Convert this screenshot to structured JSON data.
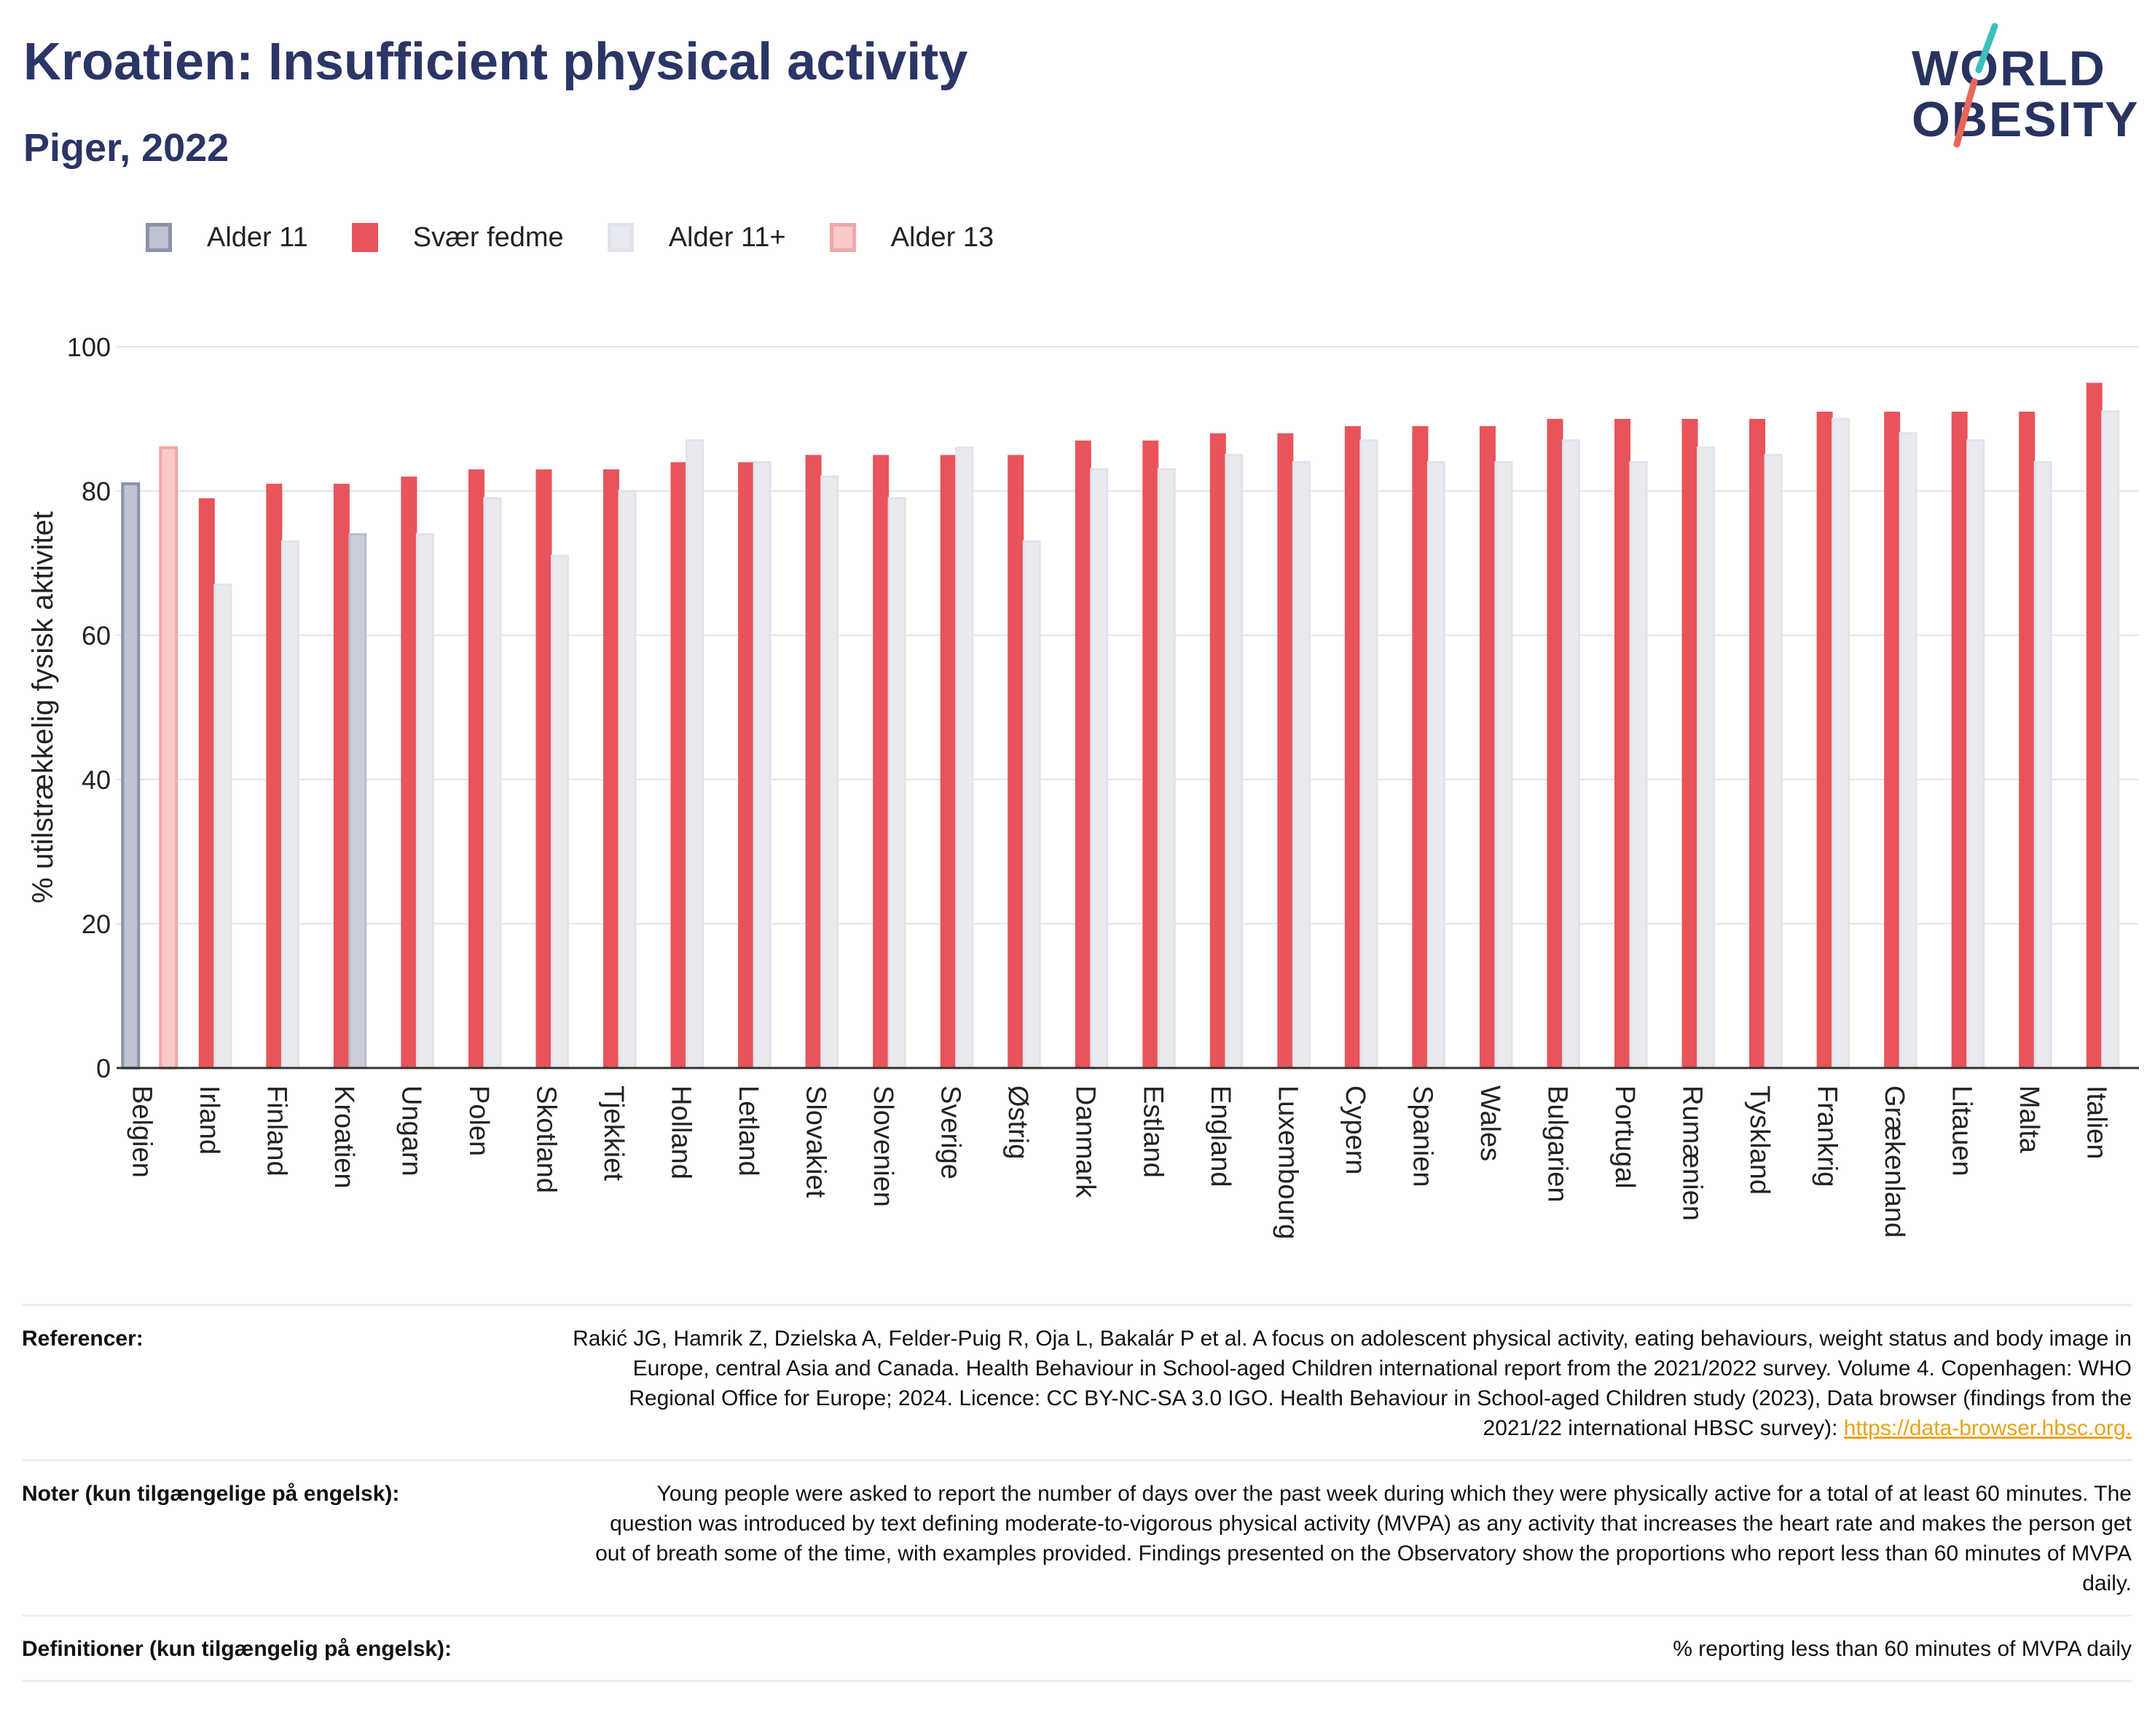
{
  "header": {
    "title": "Kroatien: Insufficient physical activity",
    "subtitle": "Piger, 2022",
    "logo_line1": "WORLD",
    "logo_line2": "OBESITY"
  },
  "legend": [
    {
      "label": "Alder 11",
      "color": "#bfc3d4",
      "border": "#8c92ab"
    },
    {
      "label": "Svær fedme",
      "color": "#e8545a",
      "border": "#e8545a"
    },
    {
      "label": "Alder 11+",
      "color": "#e9eaf0",
      "border": "#e1e3ea"
    },
    {
      "label": "Alder 13",
      "color": "#f8c9ca",
      "border": "#f3a6a8"
    }
  ],
  "chart_data": {
    "type": "bar",
    "ylabel": "% utilstrækkelig fysisk aktivitet",
    "ylim": [
      0,
      100
    ],
    "yticks": [
      0,
      20,
      40,
      60,
      80,
      100
    ],
    "categories": [
      "Belgien",
      "Irland",
      "Finland",
      "Kroatien",
      "Ungarn",
      "Polen",
      "Skotland",
      "Tjekkiet",
      "Holland",
      "Letland",
      "Slovakiet",
      "Slovenien",
      "Sverige",
      "Østrig",
      "Danmark",
      "Estland",
      "England",
      "Luxembourg",
      "Cypern",
      "Spanien",
      "Wales",
      "Bulgarien",
      "Portugal",
      "Rumænien",
      "Tyskland",
      "Frankrig",
      "Grækenland",
      "Litauen",
      "Malta",
      "Italien"
    ],
    "series": [
      {
        "name": "Alder 11",
        "color": "#bfc3d4",
        "values": [
          81,
          null,
          null,
          null,
          null,
          null,
          null,
          null,
          null,
          null,
          null,
          null,
          null,
          null,
          null,
          null,
          null,
          null,
          null,
          null,
          null,
          null,
          null,
          null,
          null,
          null,
          null,
          null,
          null,
          null
        ]
      },
      {
        "name": "Alder 13",
        "color": "#f8c9ca",
        "values": [
          86,
          null,
          null,
          null,
          null,
          null,
          null,
          null,
          null,
          null,
          null,
          null,
          null,
          null,
          null,
          null,
          null,
          null,
          null,
          null,
          null,
          null,
          null,
          null,
          null,
          null,
          null,
          null,
          null,
          null
        ]
      },
      {
        "name": "Svær fedme",
        "color": "#e8545a",
        "values": [
          null,
          79,
          81,
          81,
          82,
          83,
          83,
          83,
          84,
          84,
          85,
          85,
          85,
          85,
          87,
          87,
          88,
          88,
          89,
          89,
          89,
          90,
          90,
          90,
          90,
          91,
          91,
          91,
          91,
          95
        ]
      },
      {
        "name": "Alder 11+",
        "color": "#e9eaf0",
        "values": [
          null,
          67,
          73,
          74,
          74,
          79,
          71,
          80,
          87,
          84,
          82,
          79,
          86,
          73,
          83,
          83,
          85,
          84,
          87,
          84,
          84,
          87,
          84,
          86,
          85,
          90,
          88,
          87,
          84,
          91
        ]
      }
    ],
    "highlight": {
      "category": "Kroatien",
      "series": "Alder 11+",
      "color": "#c9ccd9"
    },
    "grid": true
  },
  "footer": {
    "references_label": "Referencer:",
    "references_text": "Rakić JG, Hamrik Z, Dzielska A, Felder-Puig R, Oja L, Bakalár P et al. A focus on adolescent physical activity, eating behaviours, weight status and body image in Europe, central Asia and Canada. Health Behaviour in School-aged Children international report from the 2021/2022 survey. Volume 4. Copenhagen: WHO Regional Office for Europe; 2024. Licence: CC BY-NC-SA 3.0 IGO. Health Behaviour in School-aged Children study (2023), Data browser (findings from the 2021/22 international HBSC survey): ",
    "references_link": "https://data-browser.hbsc.org.",
    "notes_label": "Noter (kun tilgængelige på engelsk):",
    "notes_text": "Young people were asked to report the number of days over the past week during which they were physically active for a total of at least 60 minutes. The question was introduced by text defining moderate-to-vigorous physical activity (MVPA) as any activity that increases the heart rate and makes the person get out of breath some of the time, with examples provided. Findings presented on the Observatory show the proportions who report less than 60 minutes of MVPA daily.",
    "definitions_label": "Definitioner (kun tilgængelig på engelsk):",
    "definitions_text": "% reporting less than 60 minutes of MVPA daily"
  }
}
